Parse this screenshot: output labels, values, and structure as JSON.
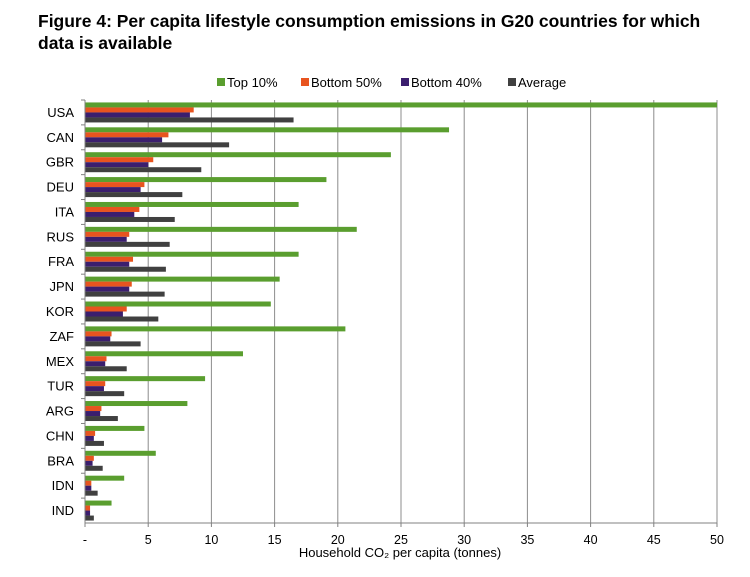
{
  "chart_data": {
    "type": "bar",
    "orientation": "horizontal",
    "title": "Figure 4: Per capita lifestyle consumption emissions in G20 countries for which data is available",
    "xlabel": "Household CO₂ per capita (tonnes)",
    "xlim": [
      0,
      50
    ],
    "x_ticks": [
      0,
      5,
      10,
      15,
      20,
      25,
      30,
      35,
      40,
      45,
      50
    ],
    "x_tick_labels": [
      "-",
      "5",
      "10",
      "15",
      "20",
      "25",
      "30",
      "35",
      "40",
      "45",
      "50"
    ],
    "grid": "vertical",
    "legend_position": "top",
    "categories": [
      "USA",
      "CAN",
      "GBR",
      "DEU",
      "ITA",
      "RUS",
      "FRA",
      "JPN",
      "KOR",
      "ZAF",
      "MEX",
      "TUR",
      "ARG",
      "CHN",
      "BRA",
      "IDN",
      "IND"
    ],
    "series": [
      {
        "name": "Top 10%",
        "color": "#5a9e2f",
        "values": [
          50.0,
          28.8,
          24.2,
          19.1,
          16.9,
          21.5,
          16.9,
          15.4,
          14.7,
          20.6,
          12.5,
          9.5,
          8.1,
          4.7,
          5.6,
          3.1,
          2.1
        ]
      },
      {
        "name": "Bottom 50%",
        "color": "#e8541f",
        "values": [
          8.6,
          6.6,
          5.4,
          4.7,
          4.3,
          3.5,
          3.8,
          3.7,
          3.3,
          2.1,
          1.7,
          1.6,
          1.3,
          0.8,
          0.7,
          0.5,
          0.4
        ]
      },
      {
        "name": "Bottom 40%",
        "color": "#3b1e6e",
        "values": [
          8.3,
          6.1,
          5.0,
          4.4,
          3.9,
          3.3,
          3.5,
          3.5,
          3.0,
          2.0,
          1.6,
          1.5,
          1.2,
          0.7,
          0.6,
          0.5,
          0.4
        ]
      },
      {
        "name": "Average",
        "color": "#404040",
        "values": [
          16.5,
          11.4,
          9.2,
          7.7,
          7.1,
          6.7,
          6.4,
          6.3,
          5.8,
          4.4,
          3.3,
          3.1,
          2.6,
          1.5,
          1.4,
          1.0,
          0.7
        ]
      }
    ]
  }
}
